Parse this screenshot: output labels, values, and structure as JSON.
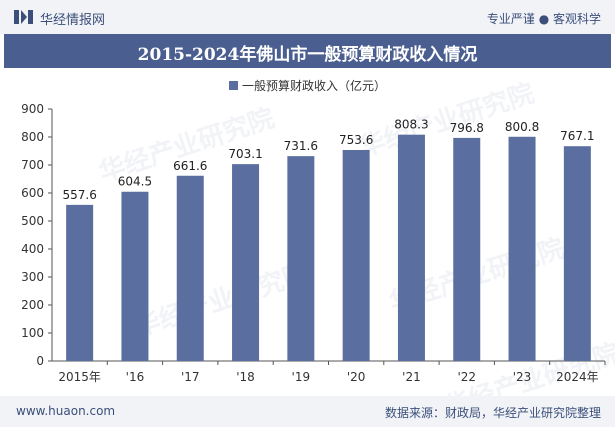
{
  "header": {
    "brand": "华经情报网",
    "tagline": "专业严谨 ● 客观科学"
  },
  "watermark": "华经产业研究院",
  "footer": {
    "url": "www.huaon.com",
    "source": "数据来源：财政局，华经产业研究院整理"
  },
  "colors": {
    "bar": "#5a6fa0",
    "title_bg": "#4a5f8f"
  },
  "chart_data": {
    "type": "bar",
    "title": "2015-2024年佛山市一般预算财政收入情况",
    "categories": [
      "2015年",
      "'16",
      "'17",
      "'18",
      "'19",
      "'20",
      "'21",
      "'22",
      "'23",
      "2024年"
    ],
    "series": [
      {
        "name": "一般预算财政收入（亿元）",
        "values": [
          557.6,
          604.5,
          661.6,
          703.1,
          731.6,
          753.6,
          808.3,
          796.8,
          800.8,
          767.1
        ]
      }
    ],
    "yticks": [
      "0",
      "100",
      "200",
      "300",
      "400",
      "500",
      "600",
      "700",
      "800",
      "900"
    ],
    "ylim": [
      0,
      900
    ],
    "grid": false,
    "legend": "top-center"
  }
}
